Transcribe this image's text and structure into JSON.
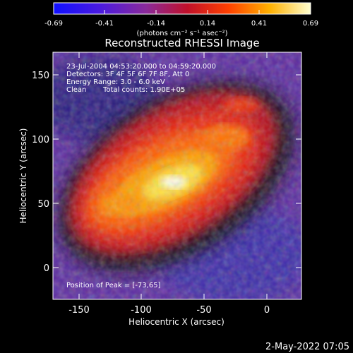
{
  "colorbar": {
    "tick_labels": [
      "-0.69",
      "-0.41",
      "-0.14",
      "0.14",
      "0.41",
      "0.69"
    ],
    "units_label": "(photons cm⁻² s⁻¹ asec⁻²)",
    "colors": [
      "#1010ff",
      "#6a20c0",
      "#9a2a8a",
      "#c8102a",
      "#ff5a00",
      "#ffb000",
      "#ffffc0"
    ]
  },
  "plot": {
    "title": "Reconstructed RHESSI Image",
    "xlabel": "Heliocentric X (arcsec)",
    "ylabel": "Heliocentric Y (arcsec)",
    "x_tick_labels": [
      "-150",
      "-100",
      "-50",
      "0"
    ],
    "y_tick_labels": [
      "0",
      "50",
      "100",
      "150"
    ],
    "xlim": [
      -167,
      20
    ],
    "ylim": [
      -25,
      170
    ]
  },
  "annotations": {
    "time_range": "23-Jul-2004 04:53:20.000 to 04:59:20.000",
    "detectors": "Detectors: 3F 4F 5F 6F 7F 8F, Att 0",
    "energy_range": "Energy Range: 3.0 - 6.0 keV",
    "clean_label": "Clean",
    "total_counts": "Total counts: 1.90E+05",
    "peak_position": "Position of Peak = [-73,65]"
  },
  "footer": {
    "timestamp": "2-May-2022 07:05"
  },
  "chart_data": {
    "type": "heatmap",
    "title": "Reconstructed RHESSI Image",
    "xlabel": "Heliocentric X (arcsec)",
    "ylabel": "Heliocentric Y (arcsec)",
    "xlim": [
      -167,
      20
    ],
    "ylim": [
      -25,
      170
    ],
    "x_ticks": [
      -150,
      -100,
      -50,
      0
    ],
    "y_ticks": [
      0,
      50,
      100,
      150
    ],
    "colorbar_range": [
      -0.69,
      0.69
    ],
    "peak_position": [
      -73,
      65
    ]
  }
}
